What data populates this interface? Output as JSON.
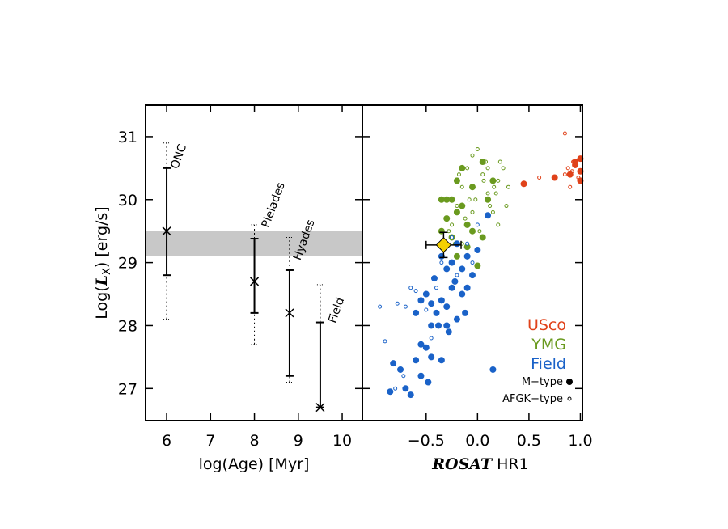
{
  "chart_data": [
    {
      "type": "errorbar",
      "xlabel": "log(Age) [Myr]",
      "ylabel": [
        "Log(",
        "L",
        "X",
        ") [erg/s]"
      ],
      "xlim": [
        5.52,
        10.46
      ],
      "ylim": [
        26.49,
        31.5
      ],
      "xticks": [
        6,
        7,
        8,
        9,
        10
      ],
      "yticks": [
        27,
        28,
        29,
        30,
        31
      ],
      "band": [
        29.1,
        29.5
      ],
      "band_color": "#c8c8c8",
      "categories": [
        "ONC",
        "Pleiades",
        "Hyades",
        "Field"
      ],
      "x": [
        6,
        8,
        8.8,
        9.5
      ],
      "values": [
        29.5,
        28.7,
        28.2,
        26.7
      ],
      "solid_low": [
        28.8,
        28.2,
        27.2,
        26.7
      ],
      "solid_high": [
        30.5,
        29.38,
        28.88,
        28.05
      ],
      "dotted_low": [
        28.1,
        27.7,
        27.1,
        null
      ],
      "dotted_high": [
        30.9,
        29.6,
        29.4,
        28.65
      ]
    },
    {
      "type": "scatter",
      "xlabel": [
        "ROSAT",
        " HR1"
      ],
      "xlim": [
        -1.12,
        1.02
      ],
      "ylim": [
        26.49,
        31.5
      ],
      "xticks": [
        {
          "value": -0.5,
          "label": "−0.5"
        },
        {
          "value": 0,
          "label": "0.0"
        },
        {
          "value": 0.5,
          "label": "0.5"
        },
        {
          "value": 1,
          "label": "1.0"
        }
      ],
      "yticks": [
        27,
        28,
        29,
        30,
        31
      ],
      "marker_labels": [
        "M−type",
        "AFGK−type"
      ],
      "series": [
        {
          "name": "USco",
          "color": "#e0421a",
          "m": {
            "x": [
              0.45,
              0.75,
              0.9,
              0.95,
              1.0,
              1.0,
              0.95,
              1.0
            ],
            "y": [
              30.25,
              30.35,
              30.4,
              30.55,
              30.45,
              30.3,
              30.6,
              30.65
            ]
          },
          "afgk": {
            "x": [
              0.92,
              0.98,
              0.85,
              0.9,
              0.93,
              0.85,
              0.88,
              0.6
            ],
            "y": [
              30.45,
              30.35,
              30.4,
              30.2,
              30.6,
              31.05,
              30.5,
              30.35
            ]
          }
        },
        {
          "name": "YMG",
          "color": "#6a9a1f",
          "m": {
            "x": [
              -0.2,
              -0.1,
              -0.1,
              -0.2,
              -0.3,
              -0.25,
              -0.15,
              -0.35,
              0.05,
              -0.05,
              -0.3,
              -0.2,
              -0.25,
              0.1,
              0.05,
              -0.15,
              -0.05,
              0.0,
              0.15,
              -0.35
            ],
            "y": [
              29.1,
              29.25,
              29.6,
              29.8,
              29.7,
              30.0,
              29.9,
              29.5,
              30.6,
              30.2,
              30.0,
              30.3,
              29.4,
              30.0,
              29.4,
              30.5,
              29.5,
              28.95,
              30.3,
              30.0
            ]
          },
          "afgk": {
            "x": [
              -0.25,
              -0.2,
              -0.15,
              -0.1,
              -0.05,
              0.0,
              0.05,
              0.1,
              0.15,
              0.2,
              0.25,
              0.3,
              -0.22,
              -0.12,
              -0.02,
              0.08,
              0.18,
              0.28,
              -0.18,
              -0.08,
              0.02,
              0.12,
              0.22,
              -0.28,
              -0.15,
              0.06,
              0.16,
              -0.05,
              0.1,
              0.2
            ],
            "y": [
              29.6,
              29.9,
              30.2,
              30.5,
              30.7,
              30.8,
              30.4,
              30.1,
              29.8,
              30.3,
              30.5,
              30.2,
              29.3,
              29.7,
              30.0,
              30.6,
              30.1,
              29.9,
              30.4,
              30.0,
              29.5,
              29.9,
              30.6,
              29.5,
              29.3,
              30.3,
              30.2,
              29.8,
              30.5,
              29.6
            ]
          }
        },
        {
          "name": "Field",
          "color": "#1a62c8",
          "m": {
            "x": [
              -0.85,
              -0.65,
              -0.82,
              -0.75,
              -0.6,
              -0.55,
              -0.48,
              -0.7,
              -0.45,
              -0.35,
              -0.5,
              -0.55,
              -0.45,
              -0.4,
              -0.3,
              -0.35,
              -0.45,
              -0.25,
              -0.15,
              -0.2,
              -0.3,
              -0.5,
              -0.55,
              -0.42,
              -0.3,
              -0.25,
              -0.15,
              -0.1,
              -0.05,
              -0.2,
              -0.1,
              0.0,
              0.1,
              0.15,
              -0.38,
              -0.28,
              -0.6,
              -0.22,
              -0.35,
              -0.12
            ],
            "y": [
              26.95,
              26.9,
              27.4,
              27.3,
              27.45,
              27.2,
              27.1,
              27.0,
              27.5,
              27.45,
              27.65,
              27.7,
              28.0,
              28.2,
              28.0,
              28.4,
              28.35,
              28.6,
              28.5,
              28.1,
              28.3,
              28.5,
              28.4,
              28.75,
              28.9,
              29.0,
              28.9,
              28.6,
              28.8,
              29.3,
              29.1,
              29.2,
              29.75,
              27.3,
              28.0,
              27.9,
              28.2,
              28.7,
              29.1,
              28.2
            ]
          },
          "afgk": {
            "x": [
              -0.9,
              -0.95,
              -0.78,
              -0.7,
              -0.65,
              -0.6,
              -0.72,
              -0.8,
              -0.5,
              -0.4,
              -0.35,
              -0.2,
              -0.1,
              0.0,
              -0.05,
              -0.25,
              -0.3,
              -0.45
            ],
            "y": [
              27.75,
              28.3,
              28.35,
              28.3,
              28.6,
              28.55,
              27.2,
              27.0,
              28.25,
              28.6,
              29.0,
              28.8,
              29.3,
              29.6,
              29.0,
              29.4,
              28.3,
              27.8
            ]
          }
        }
      ],
      "target": {
        "x": -0.33,
        "y": 29.28,
        "xerr": 0.17,
        "yerr": 0.2,
        "color": "#f5d000"
      }
    }
  ]
}
